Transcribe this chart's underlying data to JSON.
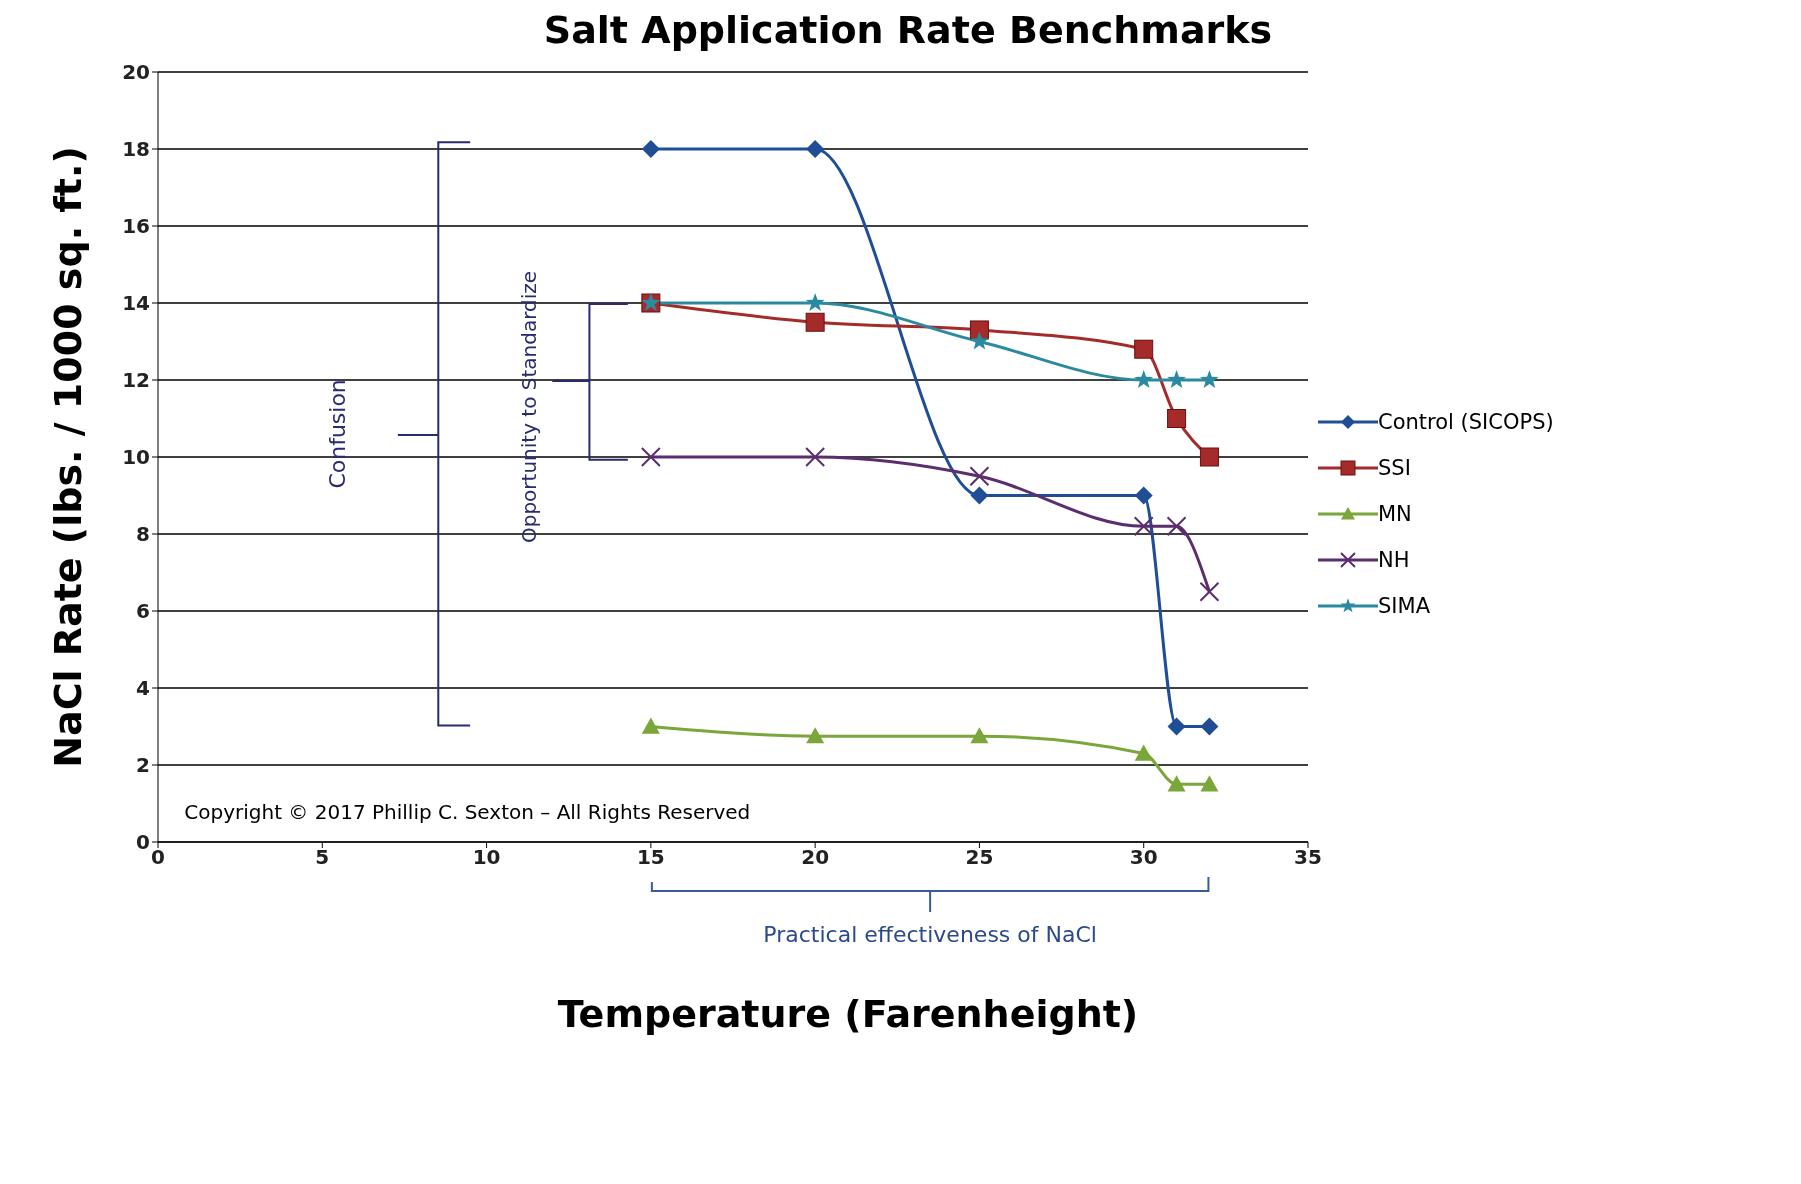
{
  "chart_data": {
    "type": "line",
    "title": "Salt Application  Rate Benchmarks",
    "xlabel": "Temperature  (Farenheight)",
    "ylabel": "NaCl Rate (lbs. / 1000 sq. ft.)",
    "x": [
      15,
      20,
      25,
      30,
      31,
      32
    ],
    "series": [
      {
        "name": "Control (SICOPS)",
        "color": "#1f4e96",
        "marker": "diamond",
        "values": [
          18,
          18,
          9,
          9,
          3,
          3
        ]
      },
      {
        "name": "SSI",
        "color": "#a52a2a",
        "marker": "square",
        "values": [
          14,
          13.5,
          13.3,
          12.8,
          11,
          10
        ]
      },
      {
        "name": "MN",
        "color": "#7aa63a",
        "marker": "triangle",
        "values": [
          3,
          2.75,
          2.75,
          2.3,
          1.5,
          1.5
        ]
      },
      {
        "name": "NH",
        "color": "#5b2d6e",
        "marker": "cross",
        "values": [
          10,
          10,
          9.5,
          8.2,
          8.2,
          6.5
        ]
      },
      {
        "name": "SIMA",
        "color": "#2a8aa0",
        "marker": "star",
        "values": [
          14,
          14,
          13,
          12,
          12,
          12
        ]
      }
    ],
    "xlim": [
      0,
      35
    ],
    "xticks": [
      0,
      5,
      10,
      15,
      20,
      25,
      30,
      35
    ],
    "ylim": [
      0,
      20
    ],
    "yticks": [
      0,
      2,
      4,
      6,
      8,
      10,
      12,
      14,
      16,
      18,
      20
    ],
    "grid": "y",
    "legend": "right",
    "line_style": "solid",
    "annotations": [
      "Confusion",
      "Opportunity to Standardize",
      "Practical effectiveness of NaCl",
      "Copyright © 2017 Phillip C. Sexton – All Rights Reserved"
    ]
  }
}
